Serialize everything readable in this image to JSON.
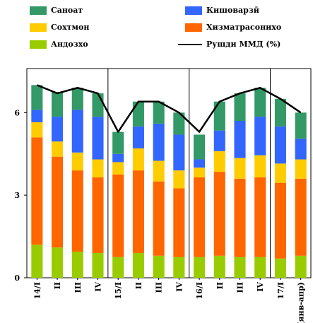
{
  "chart_data": {
    "type": "bar",
    "stacked": true,
    "categories": [
      "14/I",
      "II",
      "III",
      "IV",
      "15/I",
      "II",
      "III",
      "IV",
      "16/I",
      "II",
      "III",
      "IV",
      "17/I",
      "(янв-апр)"
    ],
    "series": [
      {
        "name": "Андозхо",
        "color": "#99CC00",
        "values": [
          1.2,
          1.1,
          0.95,
          0.9,
          0.75,
          0.9,
          0.8,
          0.75,
          0.75,
          0.8,
          0.75,
          0.75,
          0.7,
          0.8
        ]
      },
      {
        "name": "Хизматрасонихо",
        "color": "#FF6600",
        "values": [
          3.9,
          3.3,
          2.95,
          2.75,
          3.0,
          3.0,
          2.7,
          2.5,
          2.9,
          3.05,
          2.85,
          2.9,
          2.75,
          2.8
        ]
      },
      {
        "name": "Сохтмон",
        "color": "#FFCC00",
        "values": [
          0.55,
          0.55,
          0.65,
          0.65,
          0.45,
          0.8,
          0.75,
          0.65,
          0.35,
          0.75,
          0.75,
          0.8,
          0.7,
          0.7
        ]
      },
      {
        "name": "Кишоварзӣ",
        "color": "#3366FF",
        "values": [
          0.45,
          0.9,
          1.55,
          1.55,
          0.3,
          0.8,
          1.35,
          1.3,
          0.3,
          0.75,
          1.35,
          1.4,
          1.35,
          0.75
        ]
      },
      {
        "name": "Саноат",
        "color": "#339966",
        "values": [
          0.9,
          0.9,
          0.8,
          0.85,
          0.8,
          0.9,
          0.8,
          0.8,
          0.9,
          1.05,
          1.0,
          1.05,
          1.0,
          0.95
        ]
      }
    ],
    "line": {
      "name": "Рушди ММД (%)",
      "color": "#000000",
      "values": [
        7.0,
        6.7,
        6.9,
        6.7,
        5.3,
        6.4,
        6.4,
        6.0,
        5.3,
        6.4,
        6.7,
        6.9,
        6.5,
        6.0
      ]
    },
    "yticks": [
      "0",
      "3",
      "6"
    ],
    "ylim": [
      0,
      7.6
    ],
    "group_dividers_after": [
      3,
      7,
      11
    ],
    "legend_placement": "top",
    "grid": false
  }
}
